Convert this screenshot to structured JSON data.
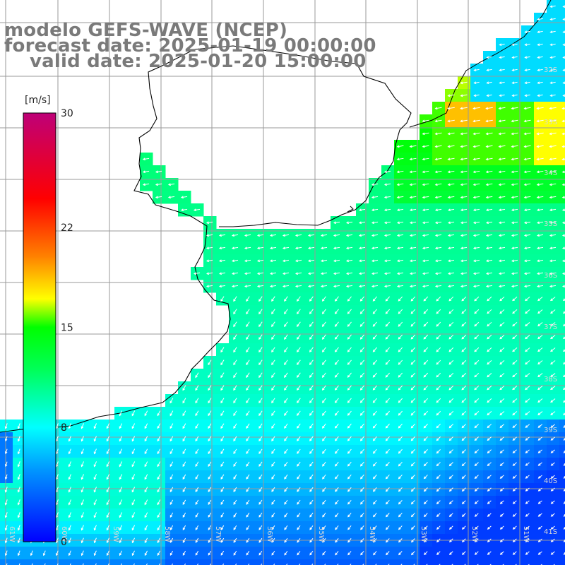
{
  "header": {
    "model_line": "modelo GEFS-WAVE (NCEP)",
    "forecast_line": "forecast date: 2025-01-19 00:00:00",
    "valid_line": "valid date: 2025-01-20 15:00:00"
  },
  "colorbar": {
    "unit": "[m/s]",
    "ticks": [
      "30",
      "22",
      "15",
      "8",
      "0"
    ],
    "tick_values": [
      30,
      22,
      15,
      8,
      0
    ],
    "min": 0,
    "max": 30,
    "colors": [
      "#0000ff",
      "#00b4ff",
      "#00ffff",
      "#00ff00",
      "#ffff00",
      "#ff8000",
      "#ff0000",
      "#c00070"
    ]
  },
  "axes": {
    "lat_labels": [
      "32S",
      "33S",
      "34S",
      "35S",
      "36S",
      "37S",
      "38S",
      "39S",
      "40S",
      "41S"
    ],
    "lon_labels": [
      "61W",
      "60W",
      "59W",
      "58W",
      "57W",
      "56W",
      "55W",
      "54W",
      "53W",
      "52W",
      "51W"
    ]
  },
  "map": {
    "grid_color": "#9a9a9a",
    "coast_color": "#000000",
    "arrow_color": "#ffffff"
  }
}
